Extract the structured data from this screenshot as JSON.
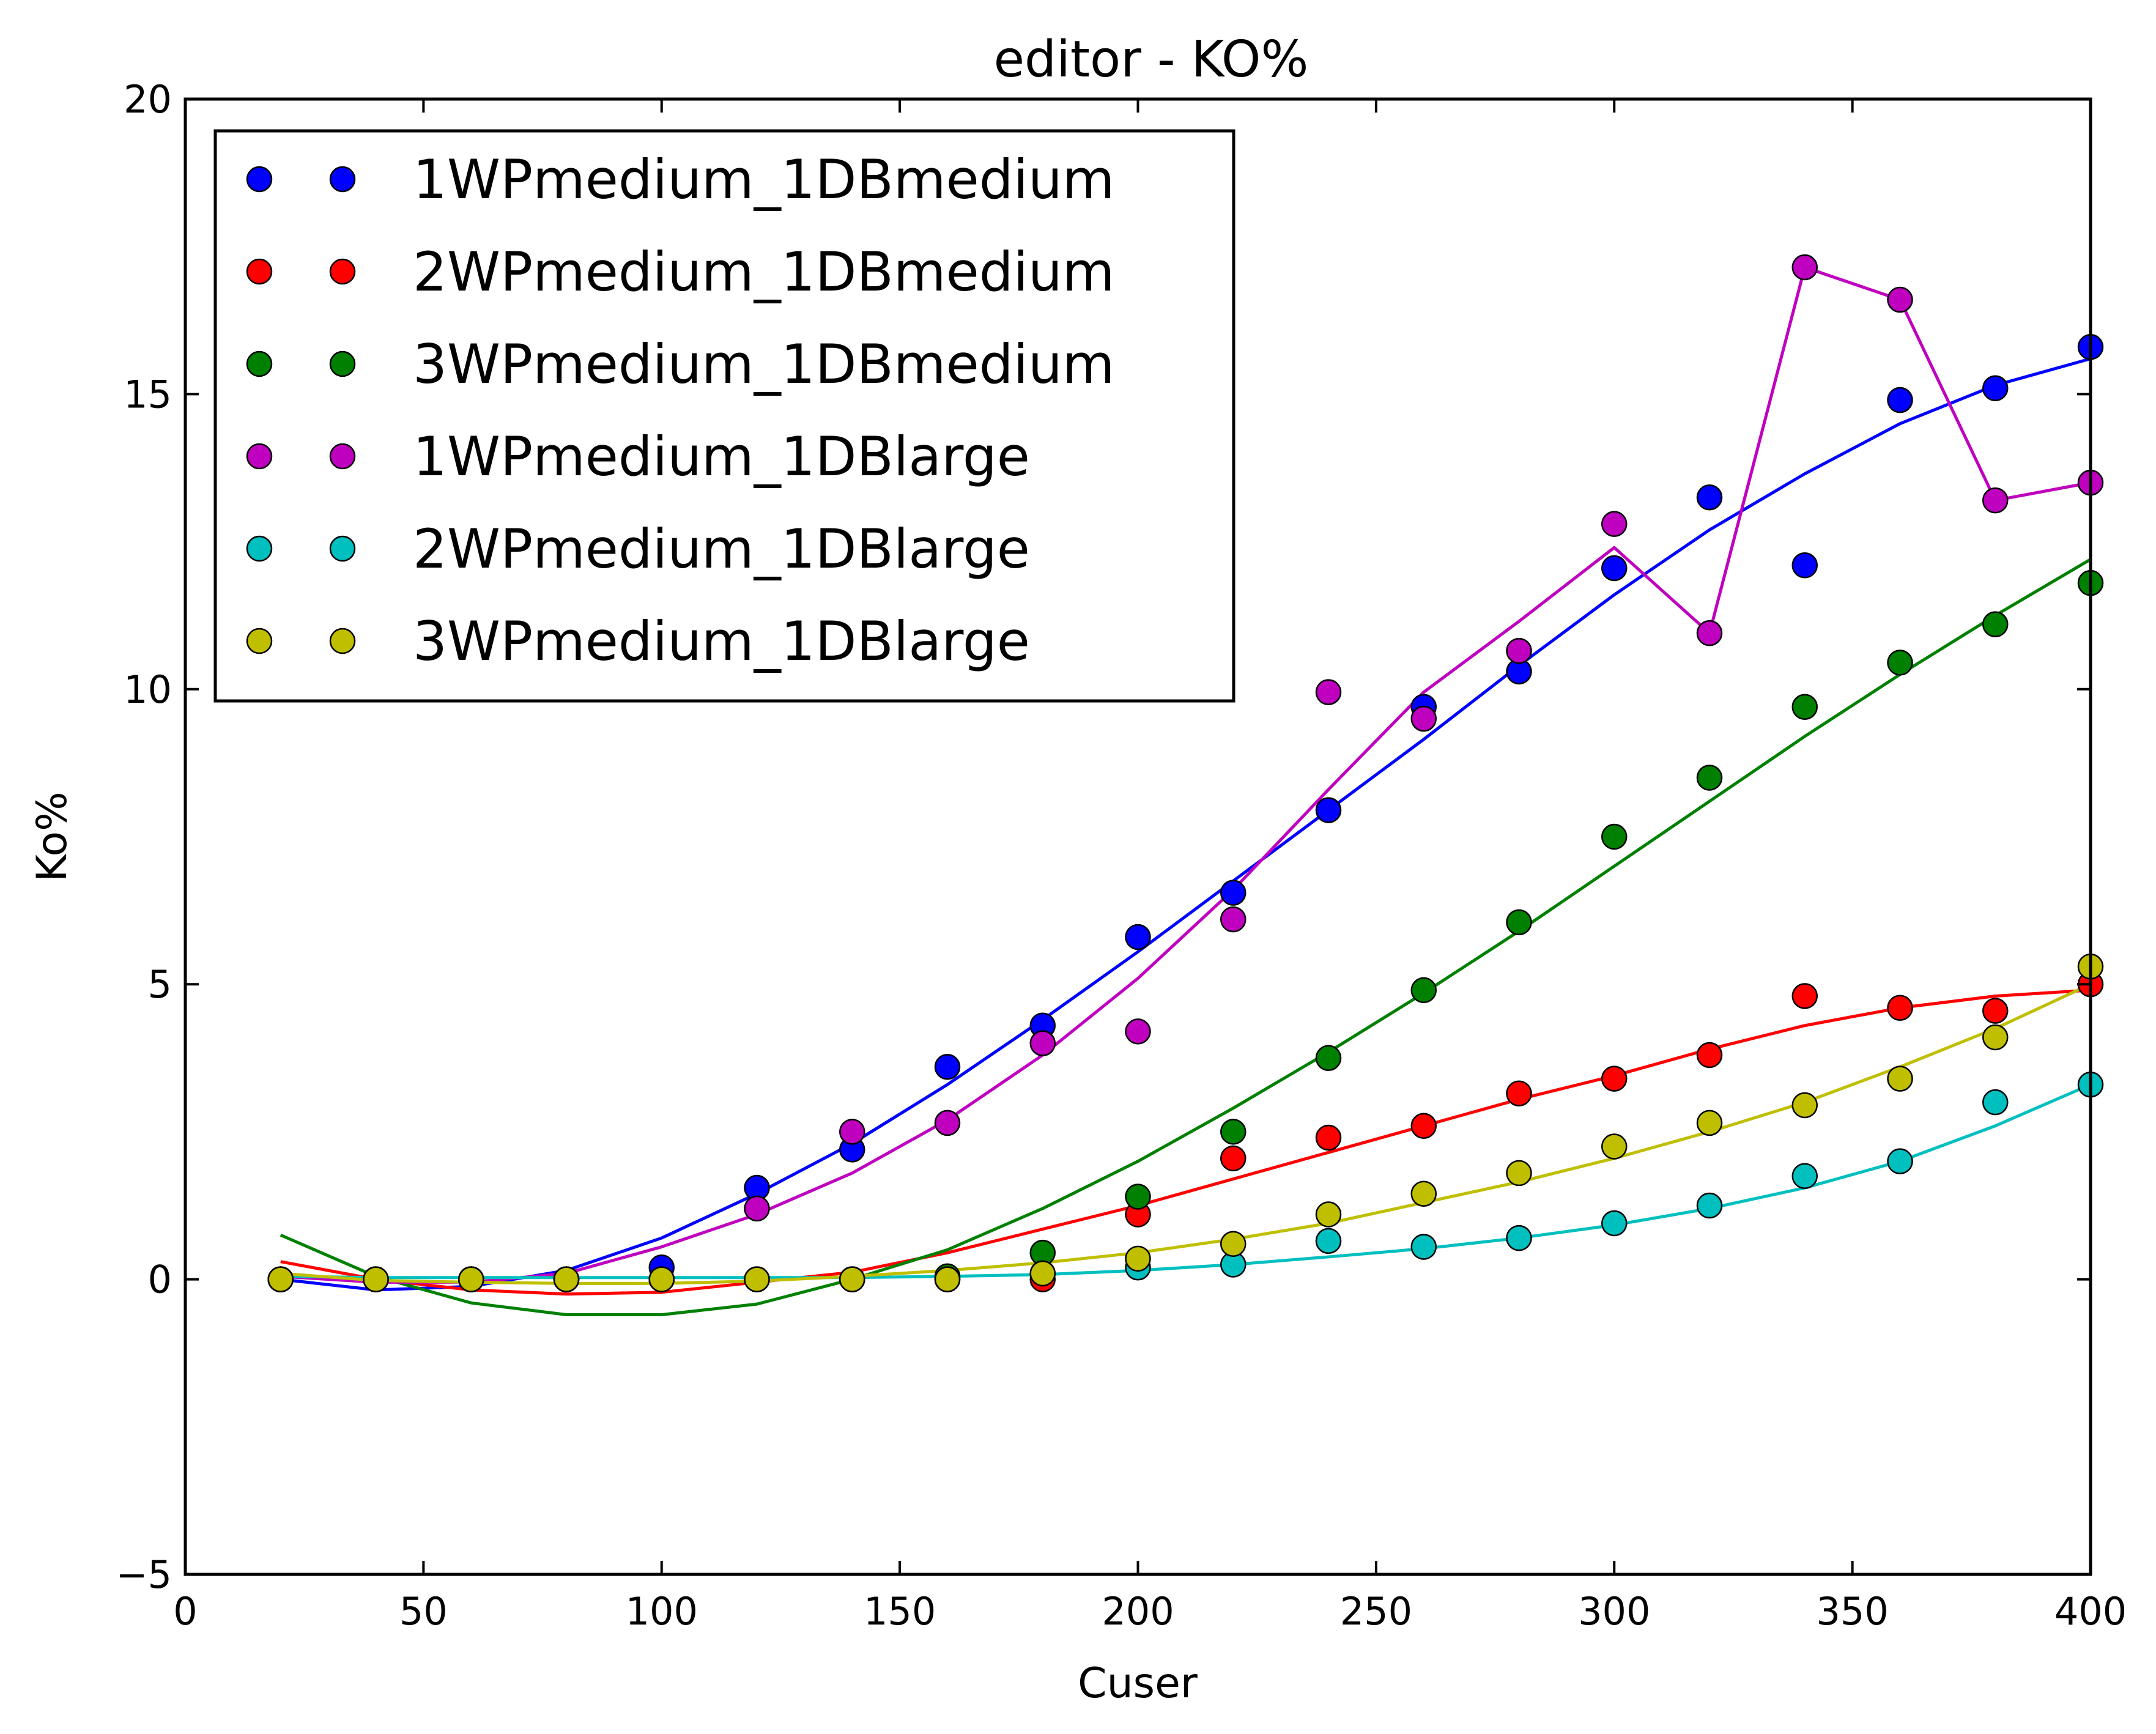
{
  "chart_data": {
    "type": "scatter",
    "title": "editor  - KO%",
    "xlabel": "Cuser",
    "ylabel": "Ko%",
    "xlim": [
      0,
      400
    ],
    "ylim": [
      -5,
      20
    ],
    "xticks": [
      0,
      50,
      100,
      150,
      200,
      250,
      300,
      350,
      400
    ],
    "yticks": [
      -5,
      0,
      5,
      10,
      15,
      20
    ],
    "xtick_labels": [
      "0",
      "50",
      "100",
      "150",
      "200",
      "250",
      "300",
      "350",
      "400"
    ],
    "ytick_labels": [
      "−5",
      "0",
      "5",
      "10",
      "15",
      "20"
    ],
    "grid": false,
    "legend_position": "upper-left",
    "x": [
      20,
      40,
      60,
      80,
      100,
      120,
      140,
      160,
      180,
      200,
      220,
      240,
      260,
      280,
      300,
      320,
      340,
      360,
      380,
      400
    ],
    "series": [
      {
        "name": "1WPmedium_1DBmedium",
        "color": "#0000ff",
        "values": [
          0,
          0,
          0,
          0,
          0.2,
          1.55,
          2.2,
          3.6,
          4.3,
          5.8,
          6.55,
          7.95,
          9.7,
          10.3,
          12.05,
          13.25,
          12.1,
          14.9,
          15.1,
          15.8
        ],
        "fit": [
          0.0,
          -0.18,
          -0.12,
          0.15,
          0.7,
          1.45,
          2.3,
          3.3,
          4.4,
          5.55,
          6.75,
          7.95,
          9.15,
          10.4,
          11.6,
          12.7,
          13.65,
          14.5,
          15.15,
          15.6
        ]
      },
      {
        "name": "2WPmedium_1DBmedium",
        "color": "#ff0000",
        "values": [
          0,
          0,
          0,
          0,
          0,
          0,
          0,
          0,
          0,
          1.1,
          2.05,
          2.4,
          2.6,
          3.15,
          3.4,
          3.8,
          4.8,
          4.6,
          4.55,
          5.0
        ],
        "fit": [
          0.3,
          0.0,
          -0.18,
          -0.25,
          -0.22,
          -0.05,
          0.12,
          0.45,
          0.85,
          1.25,
          1.7,
          2.15,
          2.6,
          3.05,
          3.45,
          3.9,
          4.3,
          4.6,
          4.8,
          4.9
        ]
      },
      {
        "name": "3WPmedium_1DBmedium",
        "color": "#008000",
        "values": [
          0,
          0,
          0,
          0,
          0,
          0,
          0,
          0.05,
          0.45,
          1.4,
          2.5,
          3.75,
          4.9,
          6.05,
          7.5,
          8.5,
          9.7,
          10.45,
          11.1,
          11.8
        ],
        "fit": [
          0.75,
          0.05,
          -0.4,
          -0.6,
          -0.6,
          -0.42,
          0.0,
          0.5,
          1.2,
          2.0,
          2.9,
          3.85,
          4.85,
          5.9,
          7.0,
          8.1,
          9.2,
          10.25,
          11.25,
          12.2
        ]
      },
      {
        "name": "1WPmedium_1DBlarge",
        "color": "#bf00bf",
        "values": [
          0,
          0,
          0,
          0,
          0,
          1.2,
          2.5,
          2.65,
          4.0,
          4.2,
          6.1,
          9.95,
          9.5,
          10.65,
          12.8,
          10.95,
          17.15,
          16.6,
          13.2,
          13.5
        ],
        "fit": [
          0.05,
          -0.05,
          -0.05,
          0.1,
          0.55,
          1.1,
          1.8,
          2.7,
          3.8,
          5.1,
          6.6,
          8.3,
          9.95,
          11.15,
          12.4,
          10.95,
          17.15,
          16.6,
          13.2,
          13.5
        ]
      },
      {
        "name": "2WPmedium_1DBlarge",
        "color": "#00bfbf",
        "values": [
          0,
          0,
          0,
          0,
          0,
          0,
          0,
          0,
          0.1,
          0.2,
          0.25,
          0.65,
          0.55,
          0.7,
          0.95,
          1.25,
          1.75,
          2.0,
          3.0,
          3.3
        ],
        "fit": [
          0.05,
          0.03,
          0.03,
          0.03,
          0.03,
          0.03,
          0.03,
          0.05,
          0.08,
          0.15,
          0.25,
          0.38,
          0.52,
          0.7,
          0.92,
          1.2,
          1.55,
          2.0,
          2.6,
          3.3
        ]
      },
      {
        "name": "3WPmedium_1DBlarge",
        "color": "#bfbf00",
        "values": [
          0,
          0,
          0,
          0,
          0,
          0,
          0,
          0,
          0.1,
          0.35,
          0.6,
          1.1,
          1.45,
          1.8,
          2.25,
          2.65,
          2.95,
          3.4,
          4.1,
          5.3
        ],
        "fit": [
          0.1,
          -0.02,
          -0.05,
          -0.07,
          -0.07,
          -0.03,
          0.05,
          0.15,
          0.28,
          0.45,
          0.68,
          0.95,
          1.3,
          1.65,
          2.05,
          2.5,
          3.0,
          3.6,
          4.25,
          5.0
        ]
      }
    ]
  }
}
